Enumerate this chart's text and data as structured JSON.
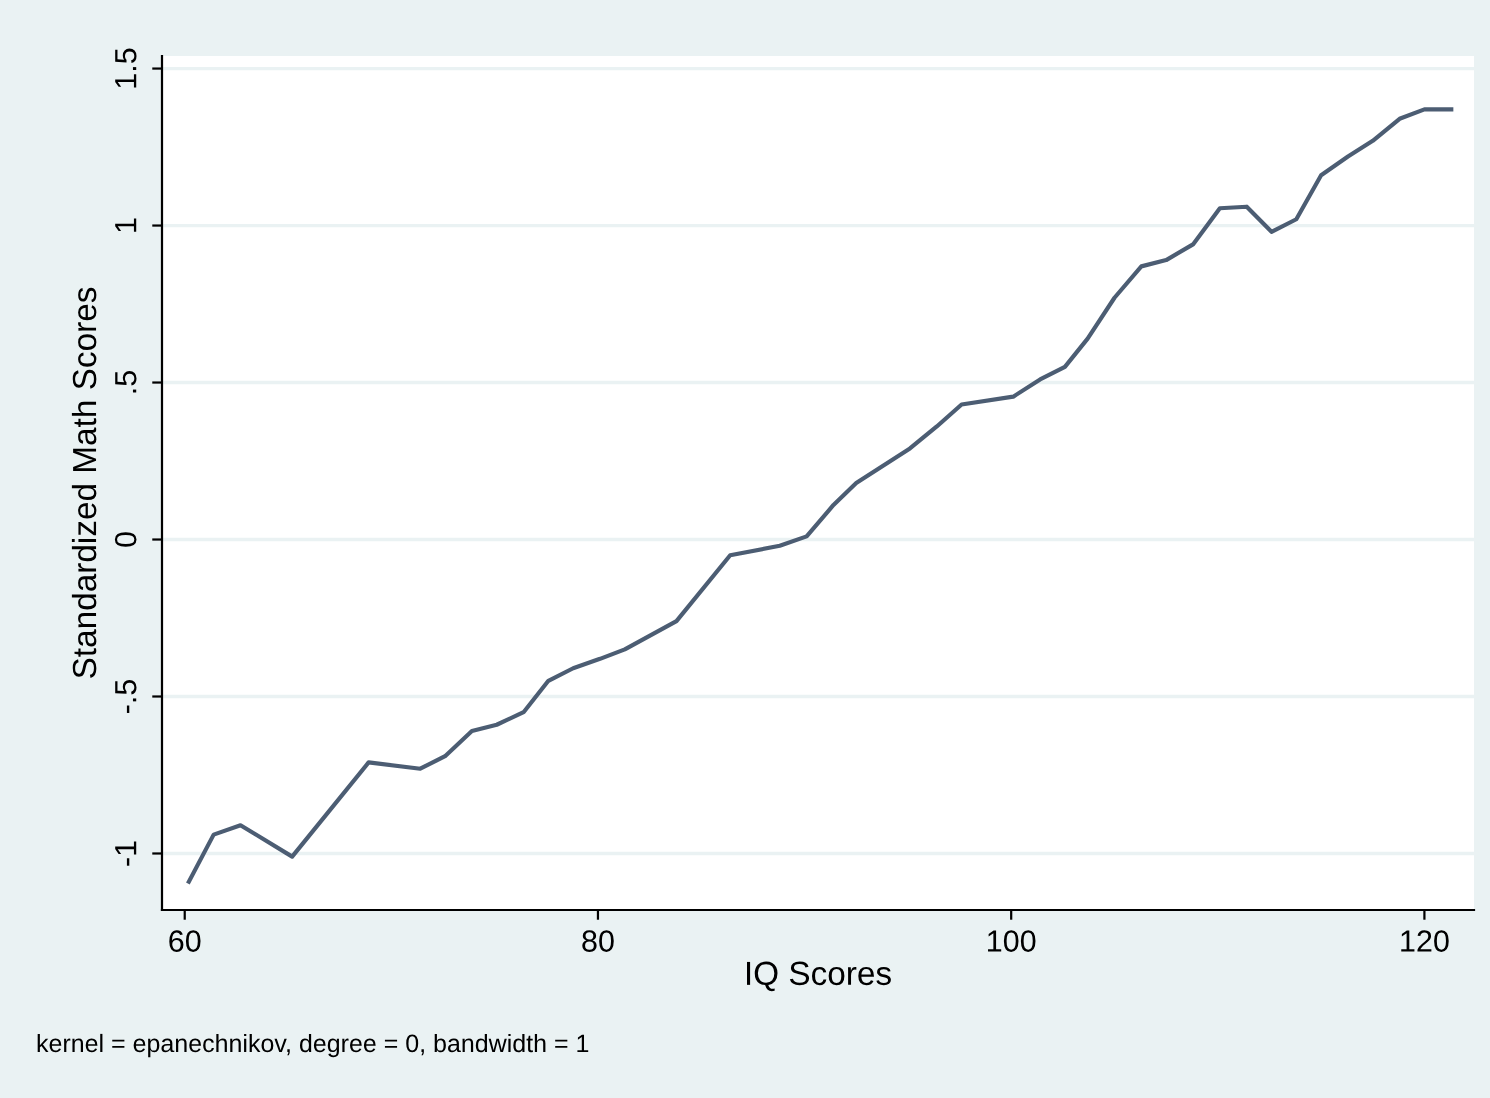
{
  "chart_data": {
    "type": "line",
    "xlabel": "IQ Scores",
    "ylabel": "Standardized Math Scores",
    "annotations": [
      "kernel = epanechnikov, degree = 0, bandwidth = 1"
    ],
    "x": [
      60.2,
      61.4,
      62.7,
      65.2,
      68.9,
      71.4,
      72.6,
      73.9,
      75.1,
      76.4,
      77.6,
      78.8,
      80.1,
      81.3,
      83.8,
      86.4,
      88.8,
      90.1,
      91.4,
      92.5,
      95.1,
      96.4,
      97.6,
      100.1,
      101.4,
      102.6,
      103.7,
      105.0,
      106.3,
      107.5,
      108.8,
      110.1,
      111.4,
      112.6,
      113.8,
      115.0,
      116.3,
      117.5,
      118.8,
      120.0,
      121.3
    ],
    "series": [
      {
        "color": "#4c5d73",
        "values": [
          -1.09,
          -0.94,
          -0.91,
          -1.01,
          -0.71,
          -0.73,
          -0.69,
          -0.61,
          -0.59,
          -0.55,
          -0.45,
          -0.41,
          -0.38,
          -0.35,
          -0.26,
          -0.05,
          -0.02,
          0.01,
          0.11,
          0.18,
          0.29,
          0.36,
          0.43,
          0.455,
          0.51,
          0.55,
          0.64,
          0.77,
          0.87,
          0.89,
          0.94,
          1.055,
          1.06,
          0.98,
          1.02,
          1.16,
          1.22,
          1.27,
          1.34,
          1.37,
          1.37
        ]
      }
    ],
    "xlim": [
      58.9,
      122.4
    ],
    "ylim": [
      -1.18,
      1.54
    ],
    "xticks": [
      60,
      80,
      100,
      120
    ],
    "yticks": [
      {
        "value": -1,
        "label": "-1"
      },
      {
        "value": -0.5,
        "label": "-.5"
      },
      {
        "value": 0,
        "label": "0"
      },
      {
        "value": 0.5,
        "label": ".5"
      },
      {
        "value": 1,
        "label": "1"
      },
      {
        "value": 1.5,
        "label": "1.5"
      }
    ],
    "grid": "y",
    "legend": false,
    "marker": "none",
    "line_style": "solid"
  }
}
